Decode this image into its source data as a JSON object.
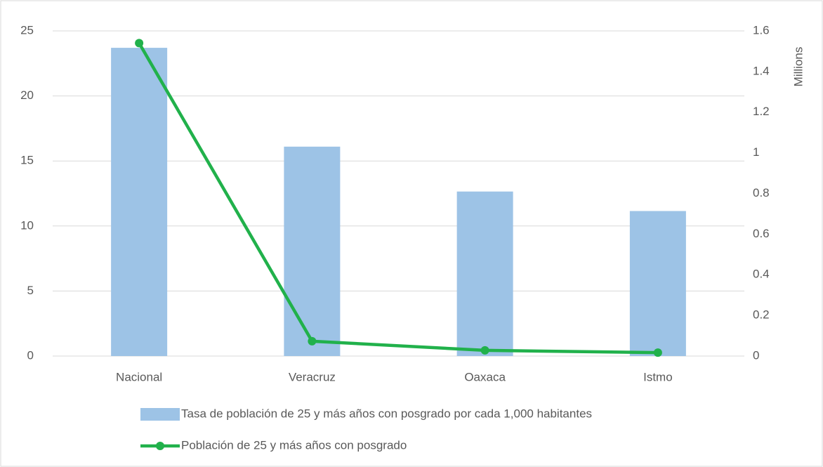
{
  "chart_data": {
    "type": "bar",
    "categories": [
      "Nacional",
      "Veracruz",
      "Oaxaca",
      "Istmo"
    ],
    "series": [
      {
        "name": "Tasa de población de 25 y más años con posgrado por cada 1,000 habitantes",
        "type": "bar",
        "color": "#9dc3e6",
        "values": [
          23.7,
          16.1,
          12.65,
          11.15
        ]
      },
      {
        "name": "Población de 25 y más años con posgrado",
        "type": "line",
        "axis": "y2",
        "color": "#21b14b",
        "values": [
          1.54,
          0.073,
          0.028,
          0.017
        ]
      }
    ],
    "ylim": [
      0,
      25
    ],
    "yticks": [
      0,
      5,
      10,
      15,
      20,
      25
    ],
    "y2lim": [
      0,
      1.6
    ],
    "y2ticks": [
      0,
      0.2,
      0.4,
      0.6,
      0.8,
      1,
      1.2,
      1.4,
      1.6
    ],
    "y2label": "Millions",
    "grid": true,
    "legend": "bottom"
  }
}
